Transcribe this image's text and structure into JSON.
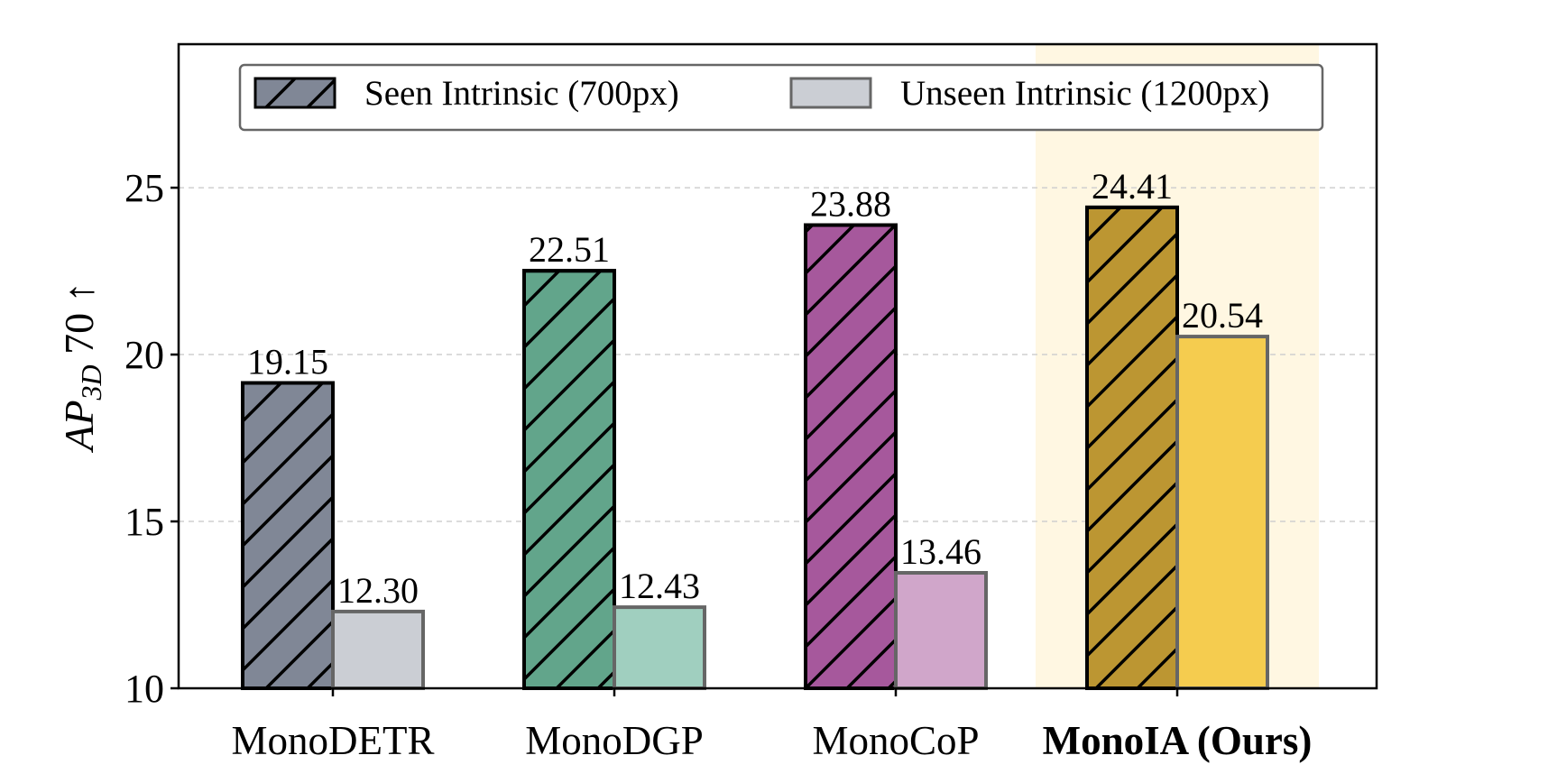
{
  "chart_data": {
    "type": "bar",
    "title": "",
    "xlabel": "",
    "ylabel_main": "AP",
    "ylabel_sub": "3D",
    "ylabel_rest": " 70 ↑",
    "ylim": [
      10,
      29.3
    ],
    "yticks": [
      10,
      15,
      20,
      25
    ],
    "ytick_labels": [
      "10",
      "15",
      "20",
      "25"
    ],
    "grid": "horizontal dashed",
    "legend_position": "top-center",
    "categories": [
      "MonoDETR",
      "MonoDGP",
      "MonoCoP",
      "MonoIA (Ours)"
    ],
    "highlight_category": "MonoIA (Ours)",
    "highlight_color": "#fff7e2",
    "series": [
      {
        "name": "Seen Intrinsic (700px)",
        "hatched": true,
        "values": [
          19.15,
          22.51,
          23.88,
          24.41
        ],
        "labels": [
          "19.15",
          "22.51",
          "23.88",
          "24.41"
        ],
        "colors": [
          "#808796",
          "#62a58b",
          "#a6589c",
          "#bc9632"
        ]
      },
      {
        "name": "Unseen Intrinsic (1200px)",
        "hatched": false,
        "values": [
          12.3,
          12.43,
          13.46,
          20.54
        ],
        "labels": [
          "12.30",
          "12.43",
          "13.46",
          "20.54"
        ],
        "colors": [
          "#cbced4",
          "#a0cfbf",
          "#d0a6ca",
          "#f5cc4f"
        ]
      }
    ],
    "legend_colors": [
      "#808796",
      "#cbced4"
    ]
  }
}
